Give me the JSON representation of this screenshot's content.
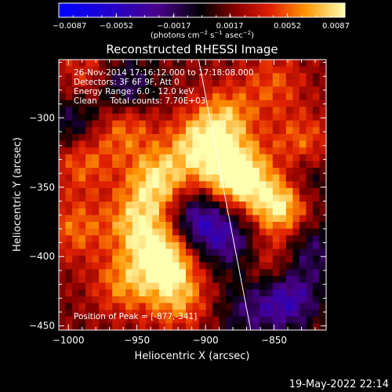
{
  "chart_data": {
    "type": "heatmap",
    "title": "Reconstructed RHESSI Image",
    "xlabel": "Heliocentric X (arcsec)",
    "ylabel": "Heliocentric Y (arcsec)",
    "xlim": [
      -1007,
      -812
    ],
    "ylim": [
      -453,
      -258
    ],
    "x_ticks": [
      -1000,
      -950,
      -900,
      -850
    ],
    "x_tick_labels": [
      "−1000",
      "−950",
      "−900",
      "−850"
    ],
    "y_ticks": [
      -300,
      -350,
      -400,
      -450
    ],
    "y_tick_labels": [
      "−300",
      "−350",
      "−400",
      "−450"
    ],
    "colorbar": {
      "min": -0.0087,
      "max": 0.0087,
      "ticks": [
        -0.0087,
        -0.0052,
        -0.0017,
        0.0017,
        0.0052,
        0.0087
      ],
      "tick_labels": [
        "−0.0087",
        "−0.0052",
        "−0.0017",
        "0.0017",
        "0.0052",
        "0.0087"
      ],
      "unit_prefix": "(photons cm",
      "unit_exp1": "−2",
      "unit_mid": " s",
      "unit_exp2": "−1",
      "unit_end": " asec",
      "unit_exp3": "−2",
      "unit_close": ")"
    },
    "limb_line": [
      [
        -905,
        -258
      ],
      [
        -867,
        -453
      ]
    ],
    "blobs": [
      {
        "x": -960,
        "y": -305,
        "v": 0.0045
      },
      {
        "x": -990,
        "y": -330,
        "v": 0.004
      },
      {
        "x": -935,
        "y": -345,
        "v": 0.006
      },
      {
        "x": -950,
        "y": -375,
        "v": 0.005
      },
      {
        "x": -930,
        "y": -400,
        "v": 0.0075
      },
      {
        "x": -960,
        "y": -420,
        "v": 0.004
      },
      {
        "x": -920,
        "y": -430,
        "v": 0.0045
      },
      {
        "x": -885,
        "y": -300,
        "v": 0.0045
      },
      {
        "x": -878,
        "y": -341,
        "v": 0.0087
      },
      {
        "x": -905,
        "y": -320,
        "v": 0.0055
      },
      {
        "x": -845,
        "y": -362,
        "v": 0.008
      },
      {
        "x": -830,
        "y": -320,
        "v": 0.004
      },
      {
        "x": -850,
        "y": -405,
        "v": 0.0035
      },
      {
        "x": -995,
        "y": -380,
        "v": 0.0035
      },
      {
        "x": -985,
        "y": -270,
        "v": 0.003
      },
      {
        "x": -850,
        "y": -275,
        "v": 0.003
      },
      {
        "x": -960,
        "y": -280,
        "v": -0.005
      },
      {
        "x": -995,
        "y": -305,
        "v": -0.004
      },
      {
        "x": -905,
        "y": -375,
        "v": -0.006
      },
      {
        "x": -880,
        "y": -390,
        "v": -0.004
      },
      {
        "x": -840,
        "y": -430,
        "v": -0.006
      },
      {
        "x": -825,
        "y": -395,
        "v": -0.004
      },
      {
        "x": -830,
        "y": -345,
        "v": -0.004
      },
      {
        "x": -870,
        "y": -440,
        "v": -0.003
      }
    ]
  },
  "info": {
    "line1": "26-Nov-2014 17:16:12.000 to 17:18:08.000",
    "line2": "Detectors: 3F 6F 9F, Att 0",
    "line3": "Energy Range: 6.0 - 12.0 keV",
    "line4": "Clean     Total counts: 7.70E+03",
    "peak": "Position of Peak = [-877,-341]"
  },
  "footer": {
    "timestamp": "19-May-2022 22:14"
  }
}
